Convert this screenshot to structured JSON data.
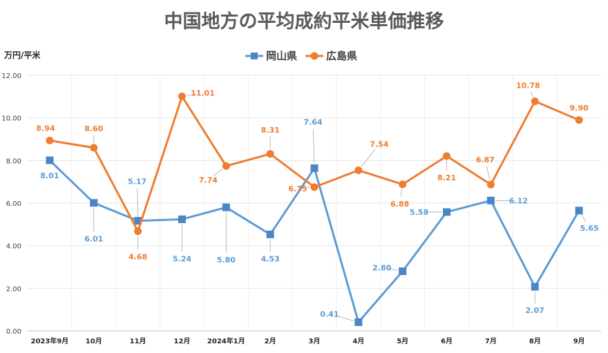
{
  "colors": {
    "okayama": "#5b9bd5",
    "okayama_marker": "#4a86c5",
    "hiroshima": "#ed7d31",
    "axis": "#bfbfbf"
  },
  "chart_data": {
    "type": "line",
    "title": "中国地方の平均成約平米単価推移",
    "ylabel": "万円/平米",
    "xlabel": "",
    "ylim": [
      0,
      12
    ],
    "yticks": [
      "0.00",
      "2.00",
      "4.00",
      "6.00",
      "8.00",
      "10.00",
      "12.00"
    ],
    "grid": true,
    "legend_position": "top-center",
    "categories": [
      "2023年9月",
      "10月",
      "11月",
      "12月",
      "2024年1月",
      "2月",
      "3月",
      "4月",
      "5月",
      "6月",
      "7月",
      "8月",
      "9月"
    ],
    "series": [
      {
        "name": "岡山県",
        "marker": "square",
        "values": [
          8.01,
          6.01,
          5.17,
          5.24,
          5.8,
          4.53,
          7.64,
          0.41,
          2.8,
          5.58,
          6.12,
          2.07,
          5.65
        ],
        "labels": [
          "8.01",
          "6.01",
          "5.17",
          "5.24",
          "5.80",
          "4.53",
          "7.64",
          "0.41",
          "2.80",
          "5.58",
          "6.12",
          "2.07",
          "5.65"
        ]
      },
      {
        "name": "広島県",
        "marker": "circle",
        "values": [
          8.94,
          8.6,
          4.68,
          11.01,
          7.74,
          8.31,
          6.75,
          7.54,
          6.88,
          8.21,
          6.87,
          10.78,
          9.9
        ],
        "labels": [
          "8.94",
          "8.60",
          "4.68",
          "11.01",
          "7.74",
          "8.31",
          "6.75",
          "7.54",
          "6.88",
          "8.21",
          "6.87",
          "10.78",
          "9.90"
        ]
      }
    ]
  }
}
